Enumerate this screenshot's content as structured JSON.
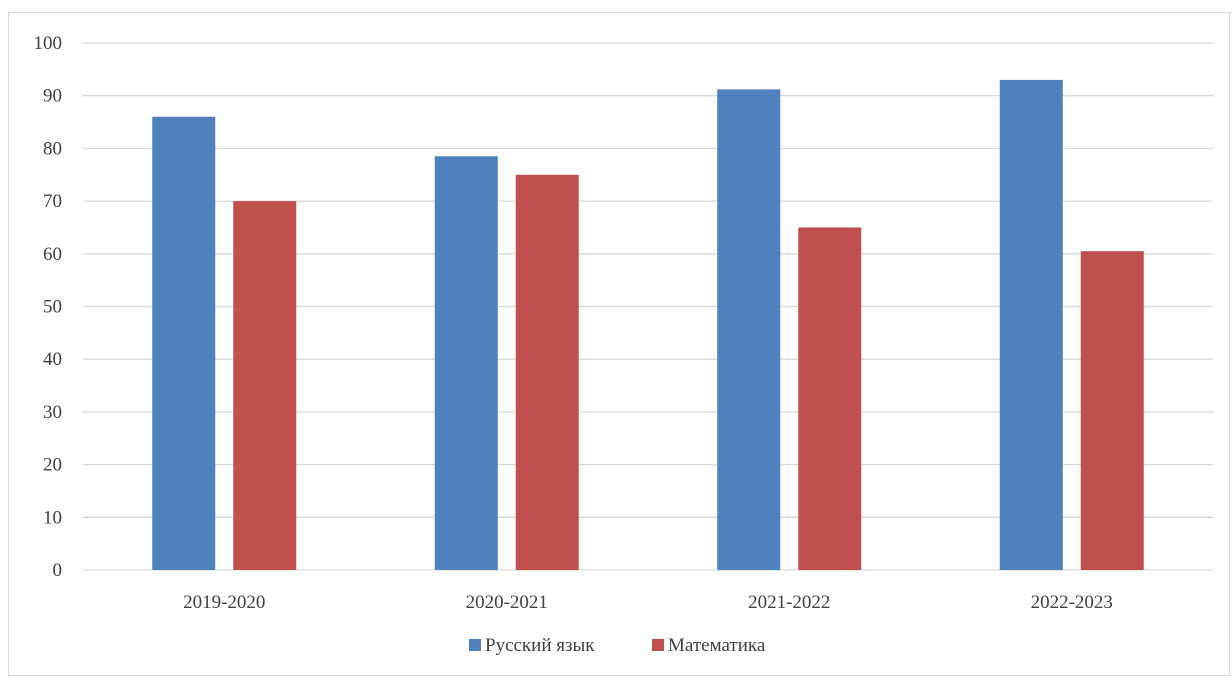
{
  "chart_data": {
    "type": "bar",
    "title": "",
    "xlabel": "",
    "ylabel": "",
    "categories": [
      "2019-2020",
      "2020-2021",
      "2021-2022",
      "2022-2023"
    ],
    "series": [
      {
        "name": "Русский язык",
        "color": "#4F81BD",
        "values": [
          86,
          78.5,
          91.2,
          93
        ]
      },
      {
        "name": "Математика",
        "color": "#C0504D",
        "values": [
          70,
          75,
          65,
          60.5
        ]
      }
    ],
    "ylim": [
      0,
      100
    ],
    "yticks": [
      "0",
      "10",
      "20",
      "30",
      "40",
      "50",
      "60",
      "70",
      "80",
      "90",
      "100"
    ],
    "grid": true,
    "gridline_color": "#d9d9d9",
    "legend_position": "bottom"
  }
}
